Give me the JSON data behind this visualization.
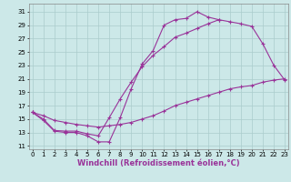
{
  "bg_color": "#cce8e8",
  "grid_color": "#aacccc",
  "line_color": "#993399",
  "xlabel": "Windchill (Refroidissement éolien,°C)",
  "xlabel_fontsize": 6,
  "yticks": [
    11,
    13,
    15,
    17,
    19,
    21,
    23,
    25,
    27,
    29,
    31
  ],
  "xticks": [
    0,
    1,
    2,
    3,
    4,
    5,
    6,
    7,
    8,
    9,
    10,
    11,
    12,
    13,
    14,
    15,
    16,
    17,
    18,
    19,
    20,
    21,
    22,
    23
  ],
  "xlim": [
    -0.3,
    23.3
  ],
  "ylim": [
    10.5,
    32.2
  ],
  "curve1_x": [
    0,
    1,
    2,
    3,
    4,
    5,
    6,
    7,
    8,
    9,
    10,
    11,
    12,
    13,
    14,
    15,
    16,
    17
  ],
  "curve1_y": [
    16.0,
    14.8,
    13.2,
    13.0,
    13.0,
    12.5,
    11.6,
    11.6,
    15.2,
    19.5,
    23.2,
    25.2,
    29.0,
    29.8,
    30.0,
    31.0,
    30.2,
    29.8
  ],
  "curve2_x": [
    0,
    1,
    2,
    3,
    4,
    5,
    6,
    7,
    8,
    9,
    10,
    11,
    12,
    13,
    14,
    15,
    16,
    17,
    18,
    19,
    20,
    21,
    22,
    23
  ],
  "curve2_y": [
    16.0,
    15.5,
    14.8,
    14.5,
    14.2,
    14.0,
    13.8,
    14.0,
    14.2,
    14.5,
    15.0,
    15.5,
    16.2,
    17.0,
    17.5,
    18.0,
    18.5,
    19.0,
    19.5,
    19.8,
    20.0,
    20.5,
    20.8,
    21.0
  ],
  "curve3_x": [
    0,
    1,
    2,
    3,
    4,
    5,
    6,
    7,
    8,
    9,
    10,
    11,
    12,
    13,
    14,
    15,
    16,
    17,
    18,
    19,
    20,
    21,
    22,
    23
  ],
  "curve3_y": [
    16.0,
    15.0,
    13.3,
    13.2,
    13.2,
    12.8,
    12.5,
    15.2,
    18.0,
    20.5,
    22.8,
    24.5,
    25.8,
    27.2,
    27.8,
    28.5,
    29.2,
    29.8,
    29.5,
    29.2,
    28.8,
    26.2,
    23.0,
    20.8
  ]
}
